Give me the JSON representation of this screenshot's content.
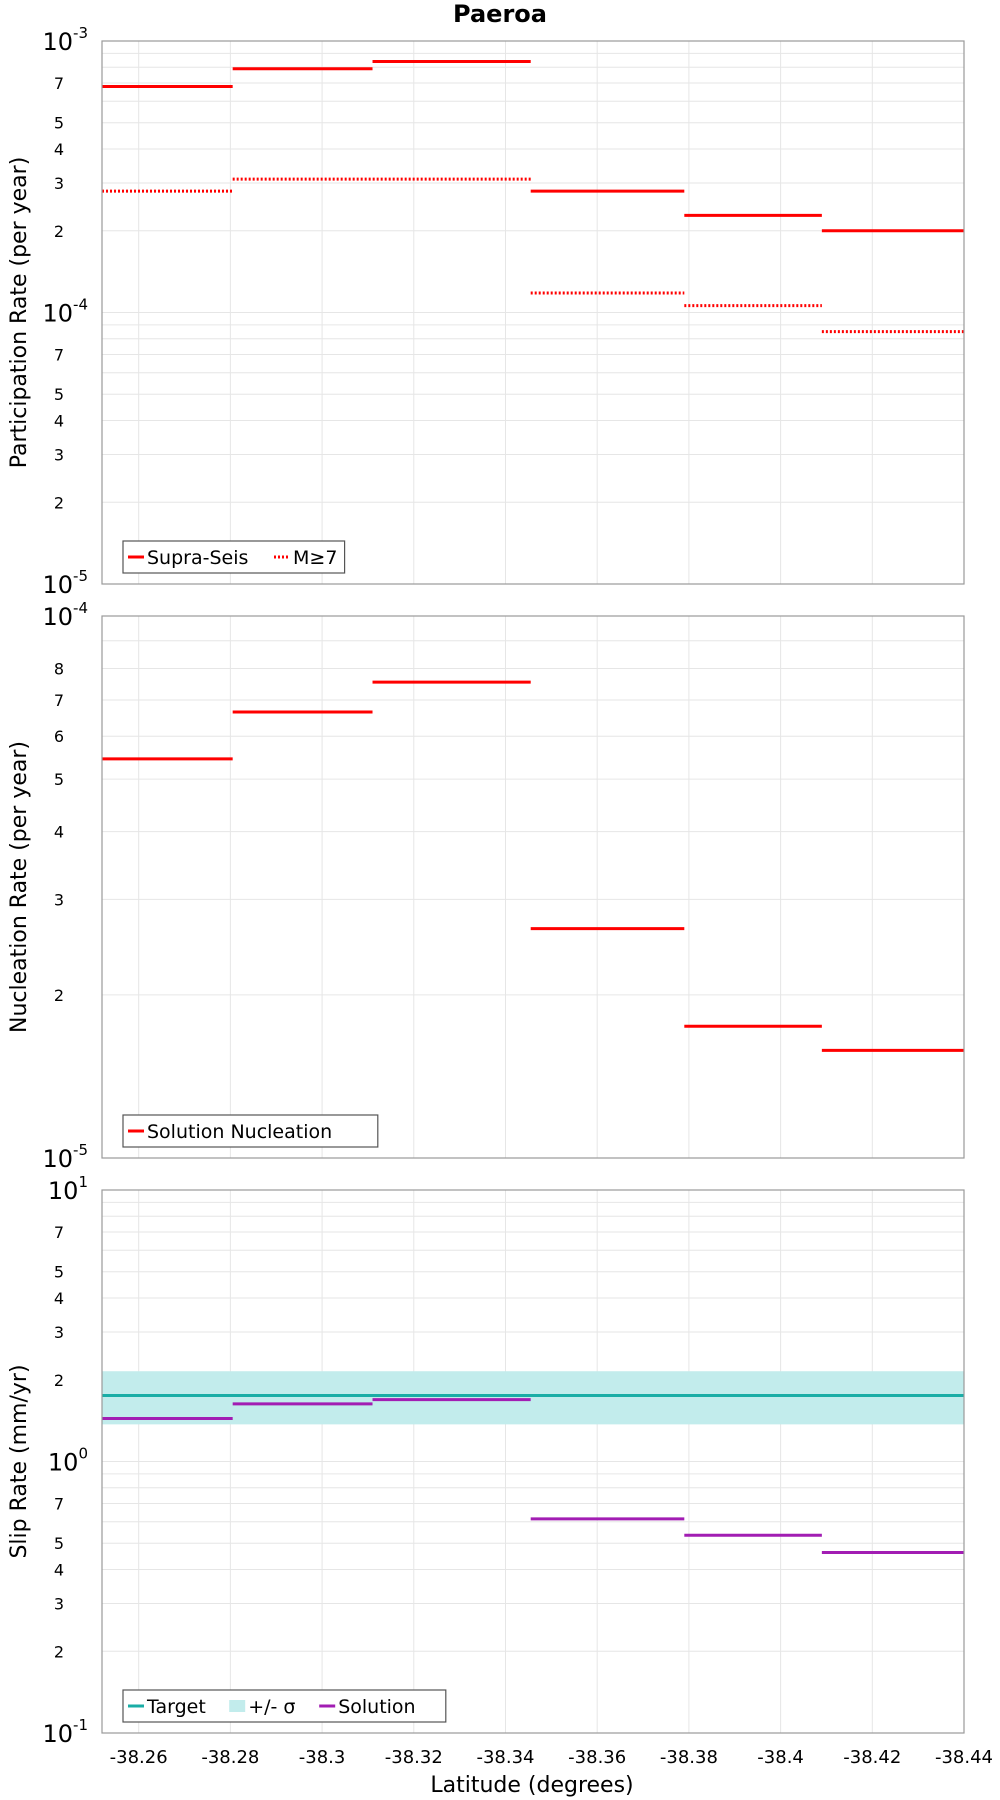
{
  "title": "Paeroa",
  "xlabel": "Latitude (degrees)",
  "colors": {
    "supra": "#ff0000",
    "m7": "#ff0000",
    "nucleation": "#ff0000",
    "target": "#1aada6",
    "band": "#c2ecec",
    "solution": "#a21db3",
    "grid": "#e6e6e6",
    "frame": "#9a9a9a"
  },
  "chart_data": [
    {
      "type": "line",
      "subtype": "step",
      "ylabel": "Participation Rate (per year)",
      "yscale": "log",
      "xlim": [
        -38.252,
        -38.44
      ],
      "ylim": [
        1e-05,
        0.001
      ],
      "major_ticks": [
        {
          "base": "10",
          "exp": "-5",
          "value": 1e-05
        },
        {
          "base": "10",
          "exp": "-4",
          "value": 0.0001
        },
        {
          "base": "10",
          "exp": "-3",
          "value": 0.001
        }
      ],
      "minor_ticks": [
        2,
        3,
        4,
        5,
        7
      ],
      "legend": [
        {
          "name": "Supra-Seis",
          "style": "solid"
        },
        {
          "name": "M≥7",
          "style": "dotted"
        }
      ],
      "series": [
        {
          "name": "Supra-Seis",
          "style": "solid",
          "segments": [
            {
              "x0": -38.252,
              "x1": -38.2805,
              "y": 0.00068
            },
            {
              "x0": -38.2805,
              "x1": -38.311,
              "y": 0.00079
            },
            {
              "x0": -38.311,
              "x1": -38.3455,
              "y": 0.00084
            },
            {
              "x0": -38.3455,
              "x1": -38.379,
              "y": 0.00028
            },
            {
              "x0": -38.379,
              "x1": -38.409,
              "y": 0.000228
            },
            {
              "x0": -38.409,
              "x1": -38.44,
              "y": 0.0002
            }
          ]
        },
        {
          "name": "M≥7",
          "style": "dotted",
          "segments": [
            {
              "x0": -38.252,
              "x1": -38.2805,
              "y": 0.00028
            },
            {
              "x0": -38.2805,
              "x1": -38.3455,
              "y": 0.00031
            },
            {
              "x0": -38.3455,
              "x1": -38.379,
              "y": 0.000118
            },
            {
              "x0": -38.379,
              "x1": -38.409,
              "y": 0.000106
            },
            {
              "x0": -38.409,
              "x1": -38.44,
              "y": 8.5e-05
            }
          ]
        }
      ]
    },
    {
      "type": "line",
      "subtype": "step",
      "ylabel": "Nucleation Rate (per year)",
      "yscale": "log",
      "xlim": [
        -38.252,
        -38.44
      ],
      "ylim": [
        1e-05,
        0.0001
      ],
      "major_ticks": [
        {
          "base": "10",
          "exp": "-5",
          "value": 1e-05
        },
        {
          "base": "10",
          "exp": "-4",
          "value": 0.0001
        }
      ],
      "minor_ticks": [
        2,
        3,
        4,
        5,
        6,
        7,
        8
      ],
      "legend": [
        {
          "name": "Solution Nucleation",
          "style": "solid"
        }
      ],
      "series": [
        {
          "name": "Solution Nucleation",
          "style": "solid",
          "segments": [
            {
              "x0": -38.252,
              "x1": -38.2805,
              "y": 5.45e-05
            },
            {
              "x0": -38.2805,
              "x1": -38.311,
              "y": 6.65e-05
            },
            {
              "x0": -38.311,
              "x1": -38.3455,
              "y": 7.55e-05
            },
            {
              "x0": -38.3455,
              "x1": -38.379,
              "y": 2.65e-05
            },
            {
              "x0": -38.379,
              "x1": -38.409,
              "y": 1.75e-05
            },
            {
              "x0": -38.409,
              "x1": -38.44,
              "y": 1.58e-05
            }
          ]
        }
      ]
    },
    {
      "type": "line",
      "subtype": "step",
      "ylabel": "Slip Rate (mm/yr)",
      "yscale": "log",
      "xlim": [
        -38.252,
        -38.44
      ],
      "ylim": [
        0.1,
        10
      ],
      "major_ticks": [
        {
          "base": "10",
          "exp": "-1",
          "value": 0.1
        },
        {
          "base": "10",
          "exp": "0",
          "value": 1
        },
        {
          "base": "10",
          "exp": "1",
          "value": 10
        }
      ],
      "minor_ticks": [
        2,
        3,
        4,
        5,
        7
      ],
      "legend": [
        {
          "name": "Target",
          "style": "solid"
        },
        {
          "name": "+/- σ",
          "style": "band"
        },
        {
          "name": "Solution",
          "style": "solid"
        }
      ],
      "band": {
        "name": "+/- σ",
        "y0": 1.37,
        "y1": 2.15
      },
      "series": [
        {
          "name": "Target",
          "style": "solid",
          "segments": [
            {
              "x0": -38.252,
              "x1": -38.44,
              "y": 1.75
            }
          ]
        },
        {
          "name": "Solution",
          "style": "solid",
          "segments": [
            {
              "x0": -38.252,
              "x1": -38.2805,
              "y": 1.44
            },
            {
              "x0": -38.2805,
              "x1": -38.311,
              "y": 1.63
            },
            {
              "x0": -38.311,
              "x1": -38.3455,
              "y": 1.69
            },
            {
              "x0": -38.3455,
              "x1": -38.379,
              "y": 0.615
            },
            {
              "x0": -38.379,
              "x1": -38.409,
              "y": 0.535
            },
            {
              "x0": -38.409,
              "x1": -38.44,
              "y": 0.462
            }
          ]
        }
      ]
    }
  ],
  "x_ticks": [
    "-38.26",
    "-38.28",
    "-38.3",
    "-38.32",
    "-38.34",
    "-38.36",
    "-38.38",
    "-38.4",
    "-38.42",
    "-38.44"
  ],
  "x_tick_values": [
    -38.26,
    -38.28,
    -38.3,
    -38.32,
    -38.34,
    -38.36,
    -38.38,
    -38.4,
    -38.42,
    -38.44
  ]
}
